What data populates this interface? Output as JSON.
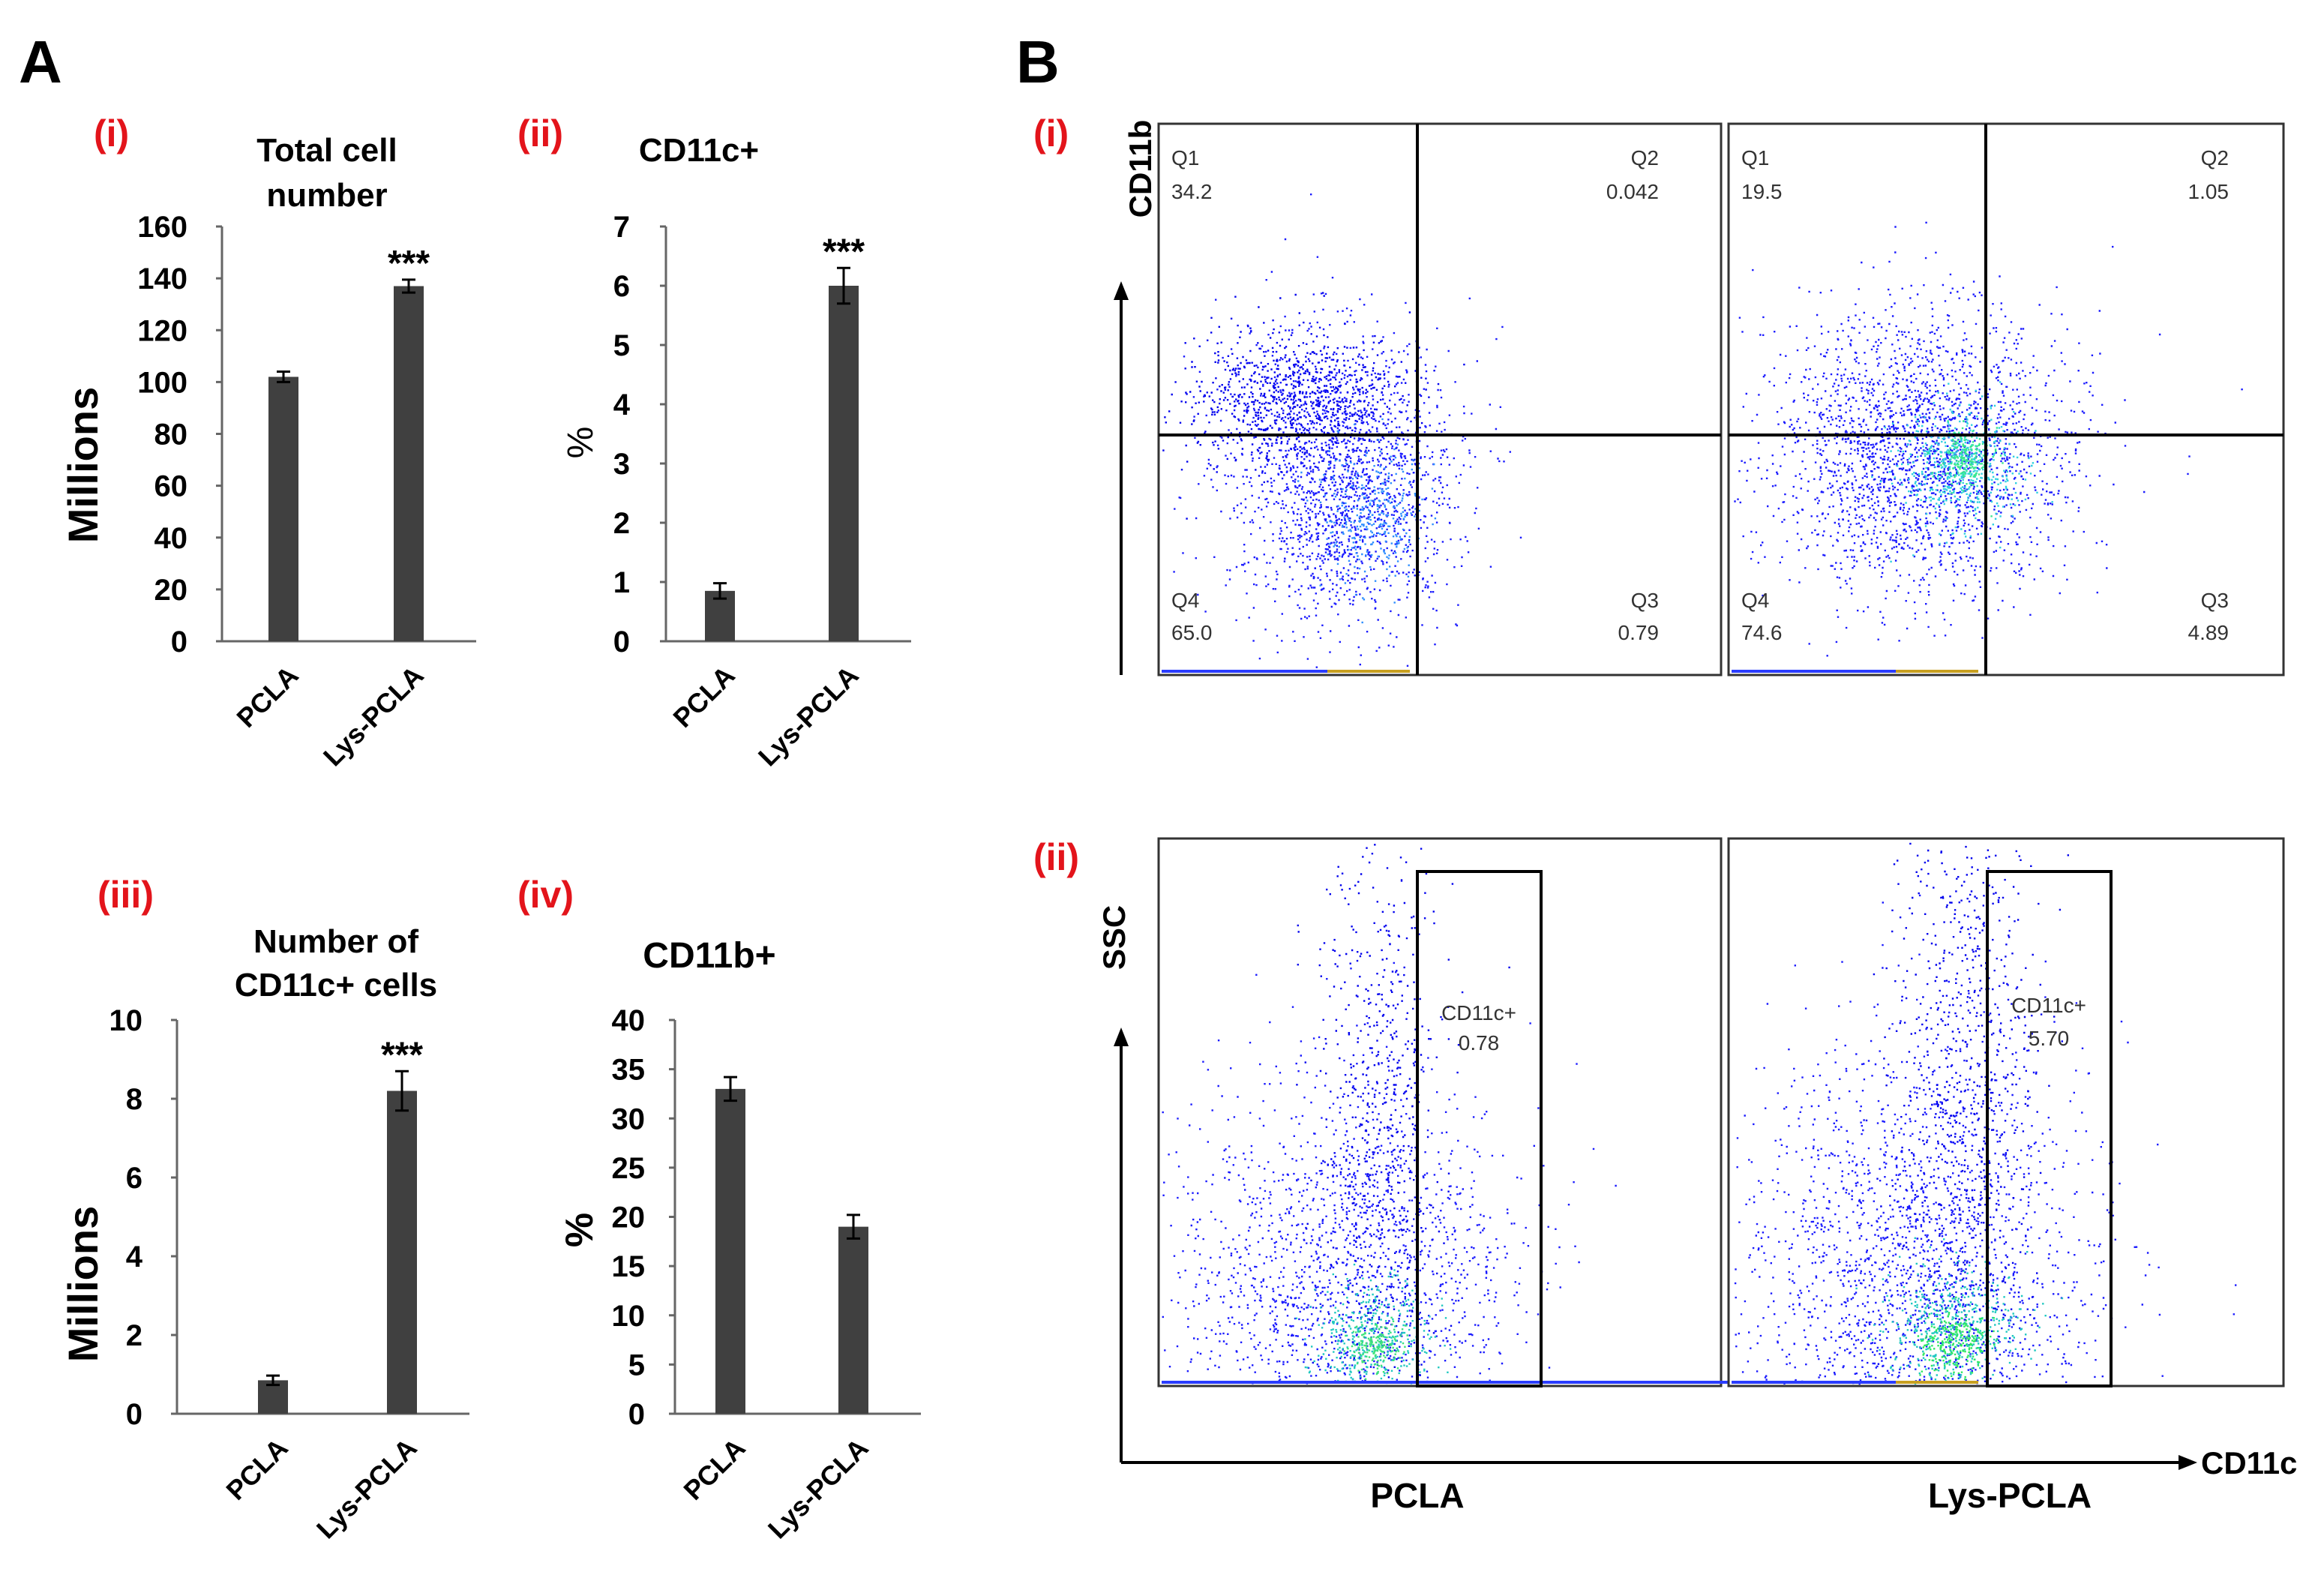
{
  "panel_A": {
    "letter": "A"
  },
  "panel_B": {
    "letter": "B"
  },
  "chart_data": [
    {
      "id": "A-i",
      "type": "bar",
      "label": "(i)",
      "title_lines": [
        "Total cell",
        "number"
      ],
      "ylabel": "Millions",
      "categories": [
        "PCLA",
        "Lys-PCLA"
      ],
      "values": [
        102,
        137
      ],
      "errors": [
        2,
        2.5
      ],
      "significance": [
        "",
        "***"
      ],
      "ylim": [
        0,
        160
      ],
      "yticks": [
        0,
        20,
        40,
        60,
        80,
        100,
        120,
        140,
        160
      ]
    },
    {
      "id": "A-ii",
      "type": "bar",
      "label": "(ii)",
      "title_lines": [
        "CD11c+"
      ],
      "ylabel": "%",
      "categories": [
        "PCLA",
        "Lys-PCLA"
      ],
      "values": [
        0.85,
        6.0
      ],
      "errors": [
        0.13,
        0.3
      ],
      "significance": [
        "",
        "***"
      ],
      "ylim": [
        0,
        7
      ],
      "yticks": [
        0,
        1,
        2,
        3,
        4,
        5,
        6,
        7
      ]
    },
    {
      "id": "A-iii",
      "type": "bar",
      "label": "(iii)",
      "title_lines": [
        "Number of",
        "CD11c+ cells"
      ],
      "ylabel": "Millions",
      "categories": [
        "PCLA",
        "Lys-PCLA"
      ],
      "values": [
        0.85,
        8.2
      ],
      "errors": [
        0.12,
        0.5
      ],
      "significance": [
        "",
        "***"
      ],
      "ylim": [
        0,
        10
      ],
      "yticks": [
        0,
        2,
        4,
        6,
        8,
        10
      ]
    },
    {
      "id": "A-iv",
      "type": "bar",
      "label": "(iv)",
      "title_lines": [
        "CD11b+"
      ],
      "ylabel": "%",
      "categories": [
        "PCLA",
        "Lys-PCLA"
      ],
      "values": [
        33,
        19
      ],
      "errors": [
        1.2,
        1.2
      ],
      "significance": [
        "",
        ""
      ],
      "ylim": [
        0,
        40
      ],
      "yticks": [
        0,
        5,
        10,
        15,
        20,
        25,
        30,
        35,
        40
      ]
    },
    {
      "id": "B-i",
      "type": "scatter",
      "label": "(i)",
      "ylabel": "CD11b",
      "samples": [
        {
          "name": "PCLA",
          "quadrants": {
            "Q1": "34.2",
            "Q2": "0.042",
            "Q3": "0.79",
            "Q4": "65.0"
          }
        },
        {
          "name": "Lys-PCLA",
          "quadrants": {
            "Q1": "19.5",
            "Q2": "1.05",
            "Q3": "4.89",
            "Q4": "74.6"
          }
        }
      ]
    },
    {
      "id": "B-ii",
      "type": "scatter",
      "label": "(ii)",
      "ylabel": "SSC",
      "xlabel": "CD11c",
      "gate_name": "CD11c+",
      "samples": [
        {
          "name": "PCLA",
          "gate_value": "0.78"
        },
        {
          "name": "Lys-PCLA",
          "gate_value": "5.70"
        }
      ]
    }
  ],
  "colors": {
    "bar": "#404040",
    "label_red": "#e3141b"
  }
}
